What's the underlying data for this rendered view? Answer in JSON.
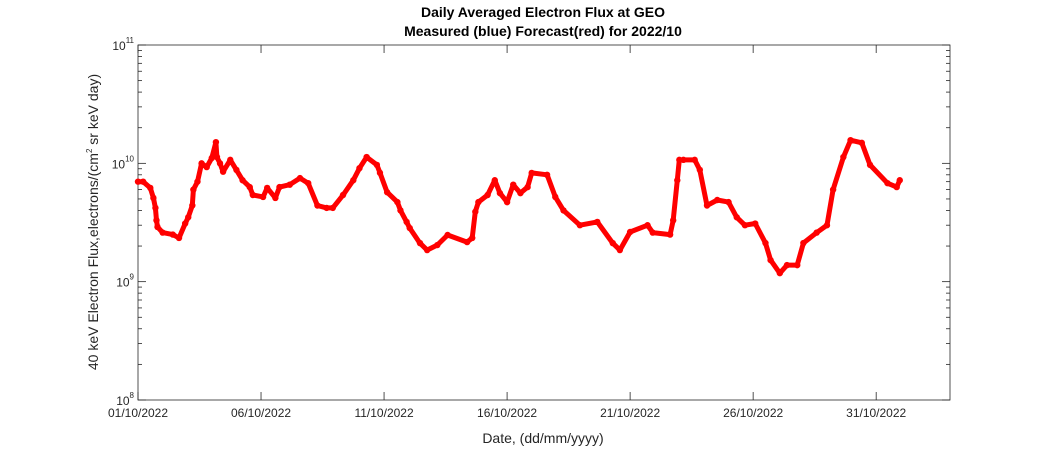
{
  "chart_data": {
    "type": "scatter",
    "title": "Daily Averaged Electron Flux at GEO",
    "subtitle": "Measured (blue) Forecast(red) for 2022/10",
    "xlabel": "Date, (dd/mm/yyyy)",
    "ylabel_main": "40 keV Electron Flux,electrons/(cm",
    "ylabel_sup": "2",
    "ylabel_tail": " sr keV day)",
    "xlim": [
      "2022-10-01T00",
      "2022-11-03T00"
    ],
    "ylim": [
      100000000.0,
      100000000000.0
    ],
    "yscale": "log",
    "grid": false,
    "x_ticks": [
      {
        "date": "2022-10-01T00",
        "label": "01/10/2022"
      },
      {
        "date": "2022-10-06T00",
        "label": "06/10/2022"
      },
      {
        "date": "2022-10-11T00",
        "label": "11/10/2022"
      },
      {
        "date": "2022-10-16T00",
        "label": "16/10/2022"
      },
      {
        "date": "2022-10-21T00",
        "label": "21/10/2022"
      },
      {
        "date": "2022-10-26T00",
        "label": "26/10/2022"
      },
      {
        "date": "2022-10-31T00",
        "label": "31/10/2022"
      }
    ],
    "y_ticks": [
      {
        "value": 100000000.0,
        "base": "10",
        "exp": "8"
      },
      {
        "value": 1000000000.0,
        "base": "10",
        "exp": "9"
      },
      {
        "value": 10000000000.0,
        "base": "10",
        "exp": "10"
      },
      {
        "value": 100000000000.0,
        "base": "10",
        "exp": "11"
      }
    ],
    "series": [
      {
        "color": "#ff0000",
        "marker": "dot",
        "points": [
          [
            "2022-10-01T00",
            7000000000.0
          ],
          [
            "2022-10-01T05",
            7000000000.0
          ],
          [
            "2022-10-01T12",
            6200000000.0
          ],
          [
            "2022-10-01T15",
            5100000000.0
          ],
          [
            "2022-10-01T17",
            4200000000.0
          ],
          [
            "2022-10-01T18",
            3300000000.0
          ],
          [
            "2022-10-01T19",
            2900000000.0
          ],
          [
            "2022-10-02T00",
            2600000000.0
          ],
          [
            "2022-10-02T10",
            2500000000.0
          ],
          [
            "2022-10-02T16",
            2340000000.0
          ],
          [
            "2022-10-02T22",
            3100000000.0
          ],
          [
            "2022-10-03T01",
            3500000000.0
          ],
          [
            "2022-10-03T05",
            4400000000.0
          ],
          [
            "2022-10-03T06",
            6000000000.0
          ],
          [
            "2022-10-03T10",
            7000000000.0
          ],
          [
            "2022-10-03T14",
            10000000000.0
          ],
          [
            "2022-10-03T19",
            9300000000.0
          ],
          [
            "2022-10-04T00",
            11100000000.0
          ],
          [
            "2022-10-04T04",
            15100000000.0
          ],
          [
            "2022-10-04T05",
            11300000000.0
          ],
          [
            "2022-10-04T08",
            10000000000.0
          ],
          [
            "2022-10-04T11",
            8500000000.0
          ],
          [
            "2022-10-04T18",
            10700000000.0
          ],
          [
            "2022-10-05T00",
            8800000000.0
          ],
          [
            "2022-10-05T06",
            7200000000.0
          ],
          [
            "2022-10-05T13",
            6300000000.0
          ],
          [
            "2022-10-05T16",
            5400000000.0
          ],
          [
            "2022-10-06T02",
            5200000000.0
          ],
          [
            "2022-10-06T06",
            6200000000.0
          ],
          [
            "2022-10-06T14",
            5100000000.0
          ],
          [
            "2022-10-06T18",
            6300000000.0
          ],
          [
            "2022-10-07T04",
            6600000000.0
          ],
          [
            "2022-10-07T14",
            7500000000.0
          ],
          [
            "2022-10-07T22",
            6800000000.0
          ],
          [
            "2022-10-08T07",
            4400000000.0
          ],
          [
            "2022-10-08T16",
            4200000000.0
          ],
          [
            "2022-10-08T22",
            4200000000.0
          ],
          [
            "2022-10-09T08",
            5400000000.0
          ],
          [
            "2022-10-09T18",
            7200000000.0
          ],
          [
            "2022-10-10T00",
            9100000000.0
          ],
          [
            "2022-10-10T07",
            11300000000.0
          ],
          [
            "2022-10-10T17",
            9700000000.0
          ],
          [
            "2022-10-10T20",
            8300000000.0
          ],
          [
            "2022-10-11T03",
            5700000000.0
          ],
          [
            "2022-10-11T13",
            4700000000.0
          ],
          [
            "2022-10-11T16",
            4000000000.0
          ],
          [
            "2022-10-11T22",
            3200000000.0
          ],
          [
            "2022-10-12T01",
            2840000000.0
          ],
          [
            "2022-10-12T11",
            2120000000.0
          ],
          [
            "2022-10-12T18",
            1850000000.0
          ],
          [
            "2022-10-13T04",
            2040000000.0
          ],
          [
            "2022-10-13T14",
            2480000000.0
          ],
          [
            "2022-10-14T09",
            2160000000.0
          ],
          [
            "2022-10-14T14",
            2340000000.0
          ],
          [
            "2022-10-14T17",
            3900000000.0
          ],
          [
            "2022-10-14T20",
            4700000000.0
          ],
          [
            "2022-10-15T05",
            5400000000.0
          ],
          [
            "2022-10-15T12",
            7200000000.0
          ],
          [
            "2022-10-15T17",
            5600000000.0
          ],
          [
            "2022-10-16T00",
            4700000000.0
          ],
          [
            "2022-10-16T06",
            6600000000.0
          ],
          [
            "2022-10-16T13",
            5600000000.0
          ],
          [
            "2022-10-16T20",
            6300000000.0
          ],
          [
            "2022-10-17T00",
            8300000000.0
          ],
          [
            "2022-10-17T15",
            8000000000.0
          ],
          [
            "2022-10-17T23",
            5200000000.0
          ],
          [
            "2022-10-18T07",
            4000000000.0
          ],
          [
            "2022-10-18T23",
            3000000000.0
          ],
          [
            "2022-10-19T16",
            3200000000.0
          ],
          [
            "2022-10-20T07",
            2120000000.0
          ],
          [
            "2022-10-20T14",
            1850000000.0
          ],
          [
            "2022-10-21T00",
            2630000000.0
          ],
          [
            "2022-10-21T17",
            3000000000.0
          ],
          [
            "2022-10-21T22",
            2600000000.0
          ],
          [
            "2022-10-22T15",
            2500000000.0
          ],
          [
            "2022-10-22T18",
            3300000000.0
          ],
          [
            "2022-10-22T22",
            7200000000.0
          ],
          [
            "2022-10-23T00",
            10700000000.0
          ],
          [
            "2022-10-23T04",
            10700000000.0
          ],
          [
            "2022-10-23T15",
            10700000000.0
          ],
          [
            "2022-10-23T20",
            8800000000.0
          ],
          [
            "2022-10-24T03",
            4400000000.0
          ],
          [
            "2022-10-24T13",
            4900000000.0
          ],
          [
            "2022-10-25T00",
            4700000000.0
          ],
          [
            "2022-10-25T08",
            3500000000.0
          ],
          [
            "2022-10-25T16",
            3000000000.0
          ],
          [
            "2022-10-26T02",
            3100000000.0
          ],
          [
            "2022-10-26T12",
            2120000000.0
          ],
          [
            "2022-10-26T17",
            1520000000.0
          ],
          [
            "2022-10-27T02",
            1180000000.0
          ],
          [
            "2022-10-27T09",
            1380000000.0
          ],
          [
            "2022-10-27T19",
            1380000000.0
          ],
          [
            "2022-10-28T01",
            2120000000.0
          ],
          [
            "2022-10-28T14",
            2600000000.0
          ],
          [
            "2022-10-29T00",
            3000000000.0
          ],
          [
            "2022-10-29T06",
            6000000000.0
          ],
          [
            "2022-10-29T16",
            11300000000.0
          ],
          [
            "2022-10-29T23",
            15700000000.0
          ],
          [
            "2022-10-30T10",
            14900000000.0
          ],
          [
            "2022-10-30T18",
            9700000000.0
          ],
          [
            "2022-10-31T11",
            6800000000.0
          ],
          [
            "2022-10-31T20",
            6300000000.0
          ],
          [
            "2022-10-31T23",
            7200000000.0
          ]
        ]
      }
    ]
  }
}
